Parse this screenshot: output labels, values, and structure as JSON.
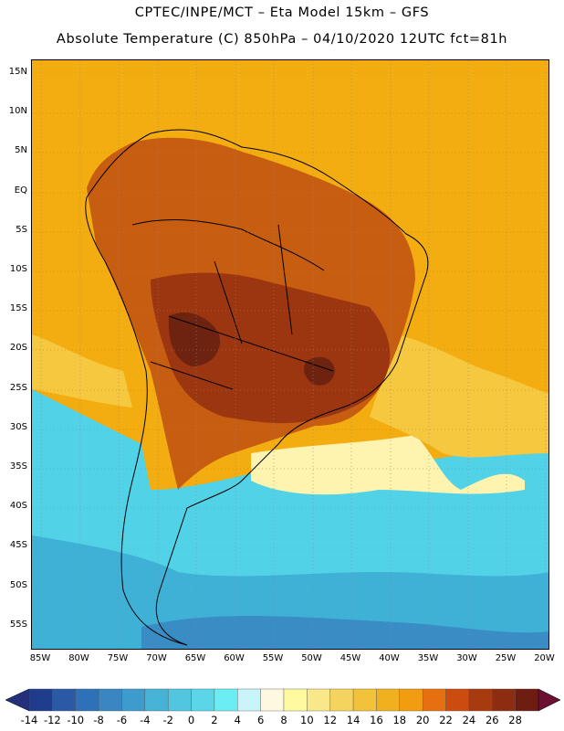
{
  "title_line1": "CPTEC/INPE/MCT –  Eta Model 15km – GFS",
  "title_line2": "Absolute Temperature (C) 850hPa – 04/10/2020 12UTC fct=81h",
  "lat_labels": [
    "15N",
    "10N",
    "5N",
    "EQ",
    "5S",
    "10S",
    "15S",
    "20S",
    "25S",
    "30S",
    "35S",
    "40S",
    "45S",
    "50S",
    "55S"
  ],
  "lon_labels": [
    "85W",
    "80W",
    "75W",
    "70W",
    "65W",
    "60W",
    "55W",
    "50W",
    "45W",
    "40W",
    "35W",
    "30W",
    "25W",
    "20W"
  ],
  "colorbar": {
    "labels": [
      "-14",
      "-12",
      "-10",
      "-8",
      "-6",
      "-4",
      "-2",
      "0",
      "2",
      "4",
      "6",
      "8",
      "10",
      "12",
      "14",
      "16",
      "18",
      "20",
      "22",
      "24",
      "26",
      "28"
    ],
    "colors": [
      "#1f3c8c",
      "#2a5aa6",
      "#2f71b8",
      "#3a86c3",
      "#3d9ccc",
      "#46b2d6",
      "#52c6e0",
      "#5ad6e8",
      "#6aeef4",
      "#c8f4fa",
      "#fff8e0",
      "#fffaa0",
      "#f8e88a",
      "#f4d45e",
      "#f2c23a",
      "#f0b020",
      "#f29c10",
      "#e67010",
      "#cc4c10",
      "#a83a10",
      "#8c2c10",
      "#6e1c10"
    ],
    "under_color": "#24307a",
    "over_color": "#6a1030"
  },
  "fields": {
    "background": "#f3ad10",
    "land_hot": "#c75d10",
    "land_very_hot": "#9b3610",
    "land_core": "#6e2210",
    "ocean_warm": "#f5c840",
    "ocean_mild": "#fff3b0",
    "ocean_cold": "#52d2e6",
    "ocean_colder": "#3fb0d6",
    "ocean_coldest": "#3a8cc4"
  }
}
